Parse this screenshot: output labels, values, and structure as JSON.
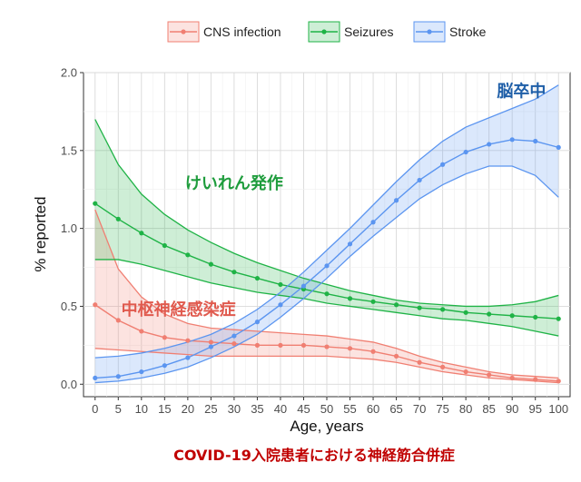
{
  "chart_data": {
    "type": "line",
    "xlabel": "Age, years",
    "ylabel": "% reported",
    "xlim": [
      -2.5,
      102.5
    ],
    "ylim": [
      -0.08,
      2.0
    ],
    "xticks": [
      0,
      5,
      10,
      15,
      20,
      25,
      30,
      35,
      40,
      45,
      50,
      55,
      60,
      65,
      70,
      75,
      80,
      85,
      90,
      95,
      100
    ],
    "yticks": [
      0.0,
      0.5,
      1.0,
      1.5,
      2.0
    ],
    "ytick_labels": [
      "0.0",
      "0.5",
      "1.0",
      "1.5",
      "2.0"
    ],
    "grid": true,
    "legend": "top",
    "x": [
      0,
      5,
      10,
      15,
      20,
      25,
      30,
      35,
      40,
      45,
      50,
      55,
      60,
      65,
      70,
      75,
      80,
      85,
      90,
      95,
      100
    ],
    "series": [
      {
        "name": "CNS infection",
        "color": "#f07f72",
        "values": [
          0.51,
          0.41,
          0.34,
          0.3,
          0.28,
          0.27,
          0.26,
          0.25,
          0.25,
          0.25,
          0.24,
          0.23,
          0.21,
          0.18,
          0.14,
          0.11,
          0.08,
          0.06,
          0.04,
          0.03,
          0.02
        ],
        "lower": [
          0.23,
          0.22,
          0.21,
          0.2,
          0.19,
          0.18,
          0.18,
          0.18,
          0.18,
          0.18,
          0.18,
          0.17,
          0.16,
          0.14,
          0.11,
          0.08,
          0.06,
          0.04,
          0.03,
          0.02,
          0.01
        ],
        "upper": [
          1.12,
          0.74,
          0.56,
          0.45,
          0.39,
          0.36,
          0.35,
          0.34,
          0.33,
          0.32,
          0.31,
          0.29,
          0.27,
          0.23,
          0.18,
          0.14,
          0.11,
          0.08,
          0.06,
          0.05,
          0.04
        ]
      },
      {
        "name": "Seizures",
        "color": "#1fb346",
        "values": [
          1.16,
          1.06,
          0.97,
          0.89,
          0.83,
          0.77,
          0.72,
          0.68,
          0.64,
          0.61,
          0.58,
          0.55,
          0.53,
          0.51,
          0.49,
          0.48,
          0.46,
          0.45,
          0.44,
          0.43,
          0.42
        ],
        "lower": [
          0.8,
          0.8,
          0.77,
          0.73,
          0.69,
          0.65,
          0.62,
          0.59,
          0.57,
          0.55,
          0.52,
          0.5,
          0.48,
          0.46,
          0.44,
          0.42,
          0.41,
          0.39,
          0.37,
          0.34,
          0.31
        ],
        "upper": [
          1.7,
          1.41,
          1.22,
          1.09,
          0.99,
          0.91,
          0.84,
          0.78,
          0.73,
          0.68,
          0.64,
          0.6,
          0.57,
          0.54,
          0.52,
          0.51,
          0.5,
          0.5,
          0.51,
          0.53,
          0.57
        ]
      },
      {
        "name": "Stroke",
        "color": "#5b95f0",
        "values": [
          0.04,
          0.05,
          0.08,
          0.12,
          0.17,
          0.24,
          0.31,
          0.4,
          0.51,
          0.63,
          0.76,
          0.9,
          1.04,
          1.18,
          1.31,
          1.41,
          1.49,
          1.54,
          1.57,
          1.56,
          1.52
        ],
        "lower": [
          0.01,
          0.02,
          0.04,
          0.07,
          0.11,
          0.17,
          0.24,
          0.32,
          0.43,
          0.55,
          0.68,
          0.82,
          0.95,
          1.07,
          1.19,
          1.28,
          1.35,
          1.4,
          1.4,
          1.34,
          1.2
        ],
        "upper": [
          0.17,
          0.18,
          0.2,
          0.23,
          0.27,
          0.32,
          0.39,
          0.48,
          0.59,
          0.72,
          0.86,
          1.0,
          1.15,
          1.3,
          1.44,
          1.56,
          1.65,
          1.71,
          1.77,
          1.83,
          1.92
        ]
      }
    ],
    "annotations": [
      {
        "text": "脳卒中",
        "color": "#1f5fa8",
        "x": 92,
        "y": 1.88
      },
      {
        "text": "けいれん発作",
        "color": "#1e9c3c",
        "x": 30,
        "y": 1.29
      },
      {
        "text": "中枢神経感染症",
        "color": "#e05a4e",
        "x": 18,
        "y": 0.48
      }
    ],
    "caption": "COVID-19入院患者における神経筋合併症",
    "caption_color": "#c00000"
  }
}
